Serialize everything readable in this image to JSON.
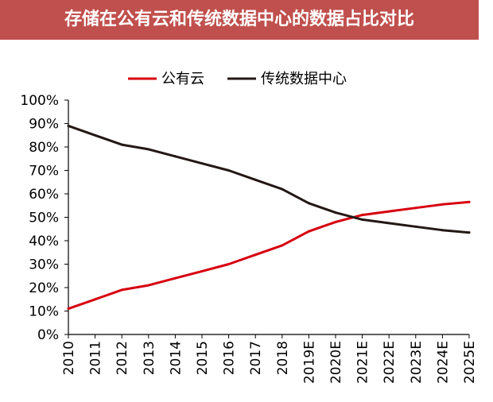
{
  "header": {
    "title": "存储在公有云和传统数据中心的数据占比对比"
  },
  "colors": {
    "title_bg": "#c0504d",
    "public_cloud": "#d7000f",
    "traditional": "#231815"
  },
  "chart_data": {
    "type": "line",
    "title": "存储在公有云和传统数据中心的数据占比对比",
    "xlabel": "",
    "ylabel": "",
    "ylim": [
      0,
      100
    ],
    "yticks": [
      "0%",
      "10%",
      "20%",
      "30%",
      "40%",
      "50%",
      "60%",
      "70%",
      "80%",
      "90%",
      "100%"
    ],
    "categories": [
      "2010",
      "2011",
      "2012",
      "2013",
      "2014",
      "2015",
      "2016",
      "2017",
      "2018",
      "2019E",
      "2020E",
      "2021E",
      "2022E",
      "2023E",
      "2024E",
      "2025E"
    ],
    "legend_position": "top",
    "series": [
      {
        "name": "公有云",
        "color": "#d7000f",
        "values": [
          11,
          15,
          19,
          21,
          24,
          27,
          30,
          34,
          38,
          44,
          48,
          51,
          52.5,
          54,
          55.5,
          56.5
        ]
      },
      {
        "name": "传统数据中心",
        "color": "#231815",
        "values": [
          89,
          85,
          81,
          79,
          76,
          73,
          70,
          66,
          62,
          56,
          52,
          49,
          47.5,
          46,
          44.5,
          43.5
        ]
      }
    ]
  }
}
